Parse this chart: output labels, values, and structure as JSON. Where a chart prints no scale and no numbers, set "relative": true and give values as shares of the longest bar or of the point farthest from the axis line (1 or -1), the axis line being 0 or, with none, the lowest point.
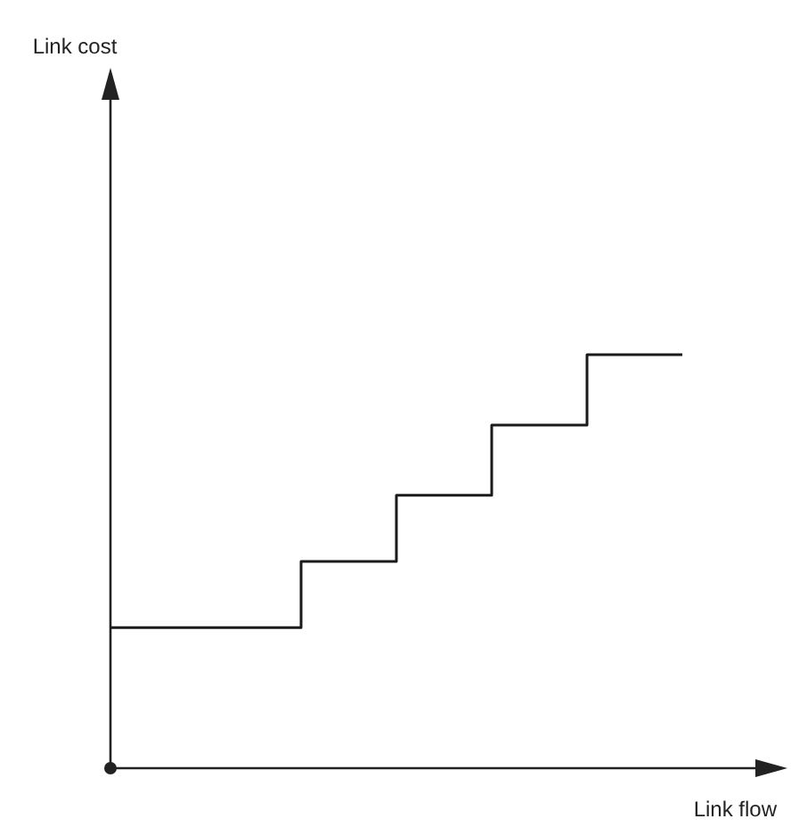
{
  "chart_data": {
    "type": "step",
    "xlabel": "Link flow",
    "annotations": [
      "Link cost"
    ],
    "relative": true,
    "categories": [
      null,
      null,
      null,
      null,
      null,
      null,
      null
    ],
    "series": [
      {
        "color": "#1a1a1a",
        "values": [
          0.34,
          0.34,
          0.5,
          0.66,
          0.83,
          1,
          1
        ]
      }
    ],
    "grid": false,
    "marker": "none",
    "line_style": "solid"
  }
}
